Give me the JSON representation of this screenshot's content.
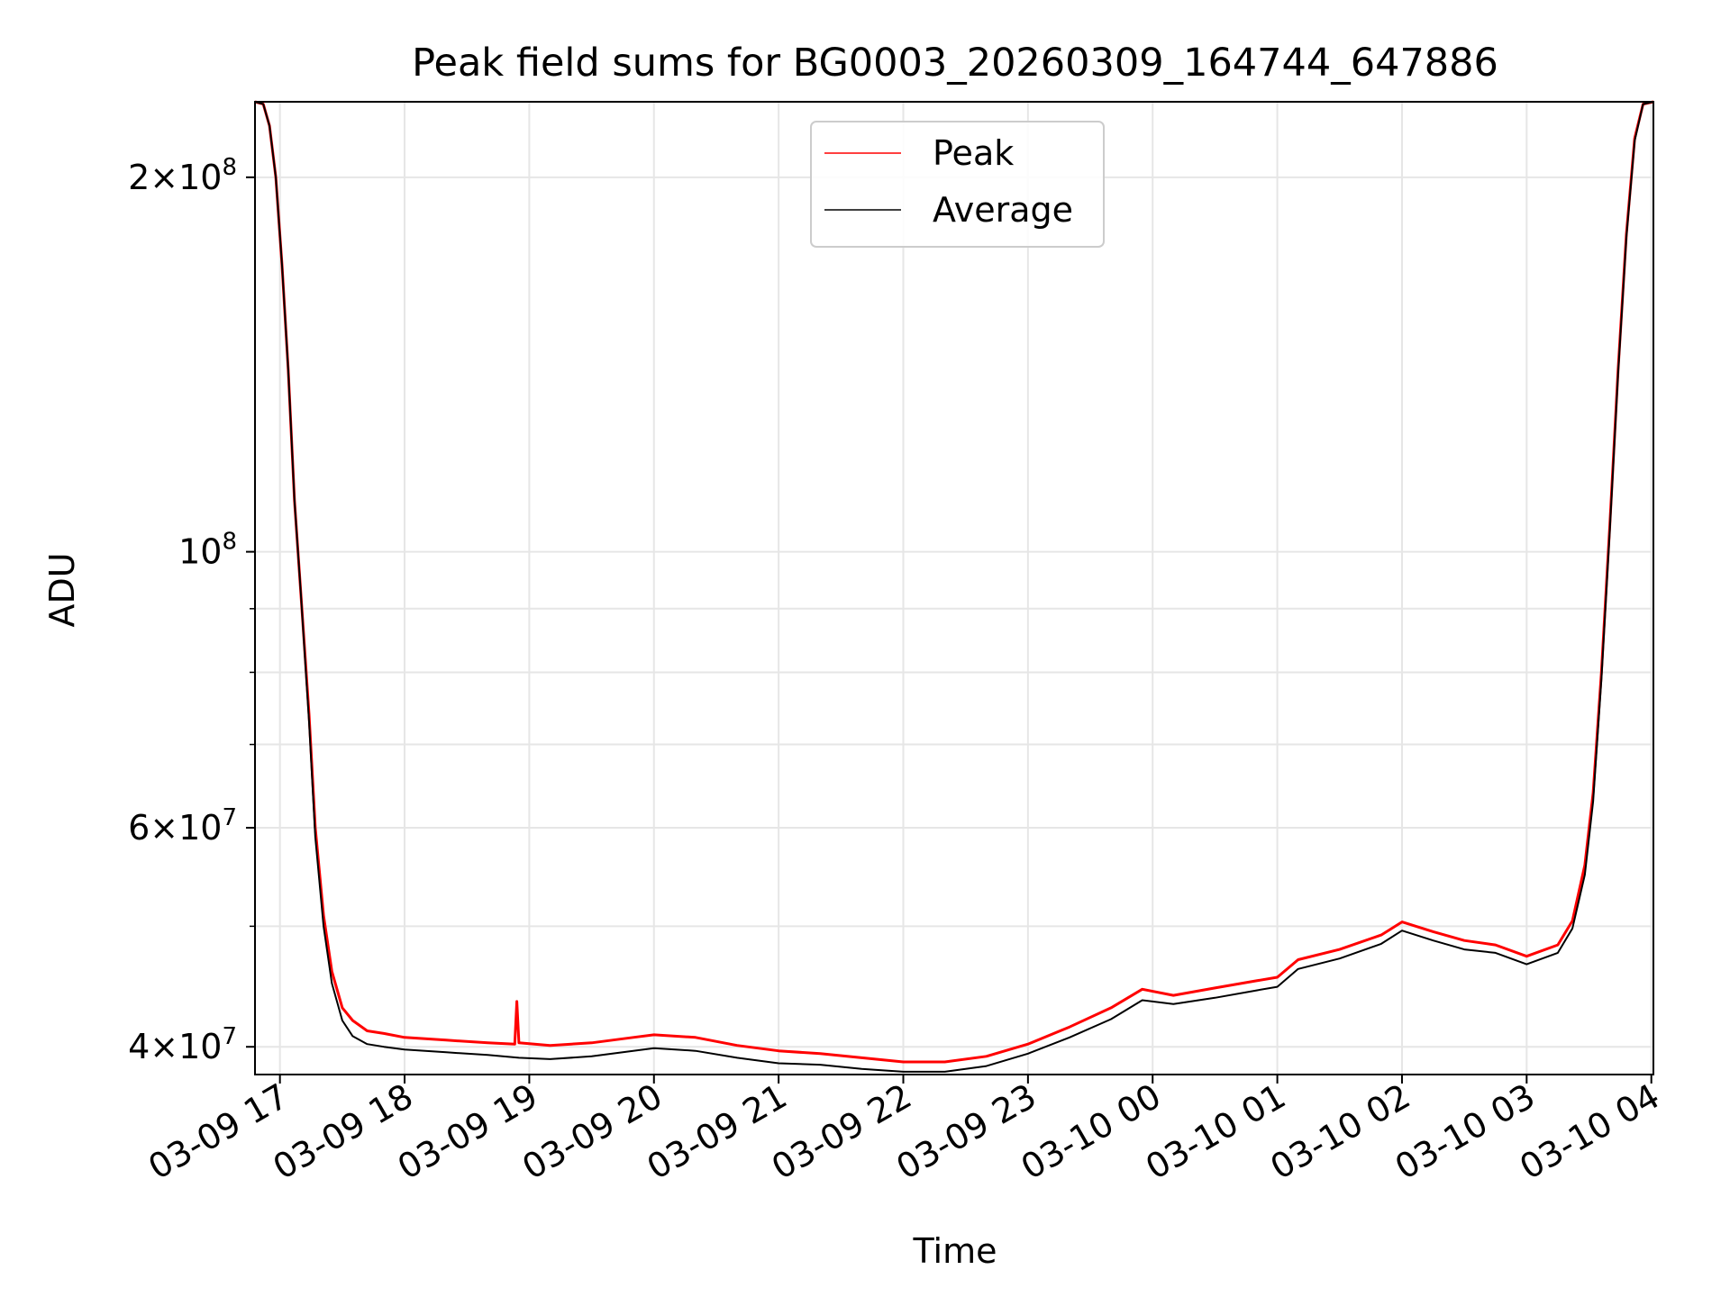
{
  "colors": {
    "peak": "#ff0000",
    "average": "#000000",
    "grid": "#e6e6e6",
    "axes": "#000000"
  },
  "chart_data": {
    "type": "line",
    "title": "Peak field sums for BG0003_20260309_164744_647886",
    "xlabel": "Time",
    "ylabel": "ADU",
    "yscale": "log",
    "grid": true,
    "legend": {
      "location": "top-center",
      "entries": [
        "Peak",
        "Average"
      ]
    },
    "xlim": [
      "2026-03-09 16:48",
      "2026-03-10 04:01"
    ],
    "ylim": [
      38000000,
      230000000
    ],
    "x_ticks": [
      {
        "value": "2026-03-09 17:00",
        "label": "03-09 17"
      },
      {
        "value": "2026-03-09 18:00",
        "label": "03-09 18"
      },
      {
        "value": "2026-03-09 19:00",
        "label": "03-09 19"
      },
      {
        "value": "2026-03-09 20:00",
        "label": "03-09 20"
      },
      {
        "value": "2026-03-09 21:00",
        "label": "03-09 21"
      },
      {
        "value": "2026-03-09 22:00",
        "label": "03-09 22"
      },
      {
        "value": "2026-03-09 23:00",
        "label": "03-09 23"
      },
      {
        "value": "2026-03-10 00:00",
        "label": "03-10 00"
      },
      {
        "value": "2026-03-10 01:00",
        "label": "03-10 01"
      },
      {
        "value": "2026-03-10 02:00",
        "label": "03-10 02"
      },
      {
        "value": "2026-03-10 03:00",
        "label": "03-10 03"
      },
      {
        "value": "2026-03-10 04:00",
        "label": "03-10 04"
      }
    ],
    "y_major_ticks": [
      {
        "value": 40000000,
        "mantissa": "4",
        "exponent": "7"
      },
      {
        "value": 60000000,
        "mantissa": "6",
        "exponent": "7"
      },
      {
        "value": 100000000,
        "mantissa": "",
        "exponent": "8"
      },
      {
        "value": 200000000,
        "mantissa": "2",
        "exponent": "8"
      }
    ],
    "y_minor_ticks": [
      50000000,
      70000000,
      80000000,
      90000000
    ],
    "series": [
      {
        "name": "Peak",
        "color": "#ff0000",
        "x": [
          "2026-03-09 16:48",
          "2026-03-09 16:52",
          "2026-03-09 16:55",
          "2026-03-09 16:58",
          "2026-03-09 17:01",
          "2026-03-09 17:04",
          "2026-03-09 17:07",
          "2026-03-09 17:10",
          "2026-03-09 17:14",
          "2026-03-09 17:17",
          "2026-03-09 17:21",
          "2026-03-09 17:25",
          "2026-03-09 17:30",
          "2026-03-09 17:35",
          "2026-03-09 17:42",
          "2026-03-09 17:50",
          "2026-03-09 18:00",
          "2026-03-09 18:20",
          "2026-03-09 18:40",
          "2026-03-09 18:53",
          "2026-03-09 18:54",
          "2026-03-09 18:55",
          "2026-03-09 19:10",
          "2026-03-09 19:30",
          "2026-03-09 19:50",
          "2026-03-09 20:00",
          "2026-03-09 20:20",
          "2026-03-09 20:40",
          "2026-03-09 21:00",
          "2026-03-09 21:20",
          "2026-03-09 21:40",
          "2026-03-09 22:00",
          "2026-03-09 22:20",
          "2026-03-09 22:40",
          "2026-03-09 23:00",
          "2026-03-09 23:20",
          "2026-03-09 23:40",
          "2026-03-09 23:55",
          "2026-03-10 00:10",
          "2026-03-10 00:30",
          "2026-03-10 00:50",
          "2026-03-10 01:00",
          "2026-03-10 01:10",
          "2026-03-10 01:30",
          "2026-03-10 01:50",
          "2026-03-10 02:00",
          "2026-03-10 02:15",
          "2026-03-10 02:30",
          "2026-03-10 02:45",
          "2026-03-10 03:00",
          "2026-03-10 03:15",
          "2026-03-10 03:22",
          "2026-03-10 03:28",
          "2026-03-10 03:32",
          "2026-03-10 03:36",
          "2026-03-10 03:40",
          "2026-03-10 03:44",
          "2026-03-10 03:48",
          "2026-03-10 03:52",
          "2026-03-10 03:56",
          "2026-03-10 04:01"
        ],
        "values": [
          230000000,
          229000000,
          220000000,
          200000000,
          170000000,
          140000000,
          110000000,
          93000000,
          74000000,
          60000000,
          51000000,
          46000000,
          43000000,
          42000000,
          41200000,
          41000000,
          40700000,
          40500000,
          40300000,
          40200000,
          43500000,
          40300000,
          40100000,
          40300000,
          40700000,
          40900000,
          40700000,
          40100000,
          39700000,
          39500000,
          39200000,
          38900000,
          38900000,
          39300000,
          40200000,
          41500000,
          43000000,
          44500000,
          44000000,
          44600000,
          45200000,
          45500000,
          47000000,
          47900000,
          49200000,
          50400000,
          49500000,
          48700000,
          48300000,
          47300000,
          48300000,
          50500000,
          56000000,
          64000000,
          80000000,
          105000000,
          140000000,
          180000000,
          215000000,
          229000000,
          230000000
        ]
      },
      {
        "name": "Average",
        "color": "#000000",
        "x": [
          "2026-03-09 16:48",
          "2026-03-09 16:52",
          "2026-03-09 16:55",
          "2026-03-09 16:58",
          "2026-03-09 17:01",
          "2026-03-09 17:04",
          "2026-03-09 17:07",
          "2026-03-09 17:10",
          "2026-03-09 17:14",
          "2026-03-09 17:17",
          "2026-03-09 17:21",
          "2026-03-09 17:25",
          "2026-03-09 17:30",
          "2026-03-09 17:35",
          "2026-03-09 17:42",
          "2026-03-09 17:50",
          "2026-03-09 18:00",
          "2026-03-09 18:20",
          "2026-03-09 18:40",
          "2026-03-09 18:55",
          "2026-03-09 19:10",
          "2026-03-09 19:30",
          "2026-03-09 19:50",
          "2026-03-09 20:00",
          "2026-03-09 20:20",
          "2026-03-09 20:40",
          "2026-03-09 21:00",
          "2026-03-09 21:20",
          "2026-03-09 21:40",
          "2026-03-09 22:00",
          "2026-03-09 22:20",
          "2026-03-09 22:40",
          "2026-03-09 23:00",
          "2026-03-09 23:20",
          "2026-03-09 23:40",
          "2026-03-09 23:55",
          "2026-03-10 00:10",
          "2026-03-10 00:30",
          "2026-03-10 00:50",
          "2026-03-10 01:00",
          "2026-03-10 01:10",
          "2026-03-10 01:30",
          "2026-03-10 01:50",
          "2026-03-10 02:00",
          "2026-03-10 02:15",
          "2026-03-10 02:30",
          "2026-03-10 02:45",
          "2026-03-10 03:00",
          "2026-03-10 03:15",
          "2026-03-10 03:22",
          "2026-03-10 03:28",
          "2026-03-10 03:32",
          "2026-03-10 03:36",
          "2026-03-10 03:40",
          "2026-03-10 03:44",
          "2026-03-10 03:48",
          "2026-03-10 03:52",
          "2026-03-10 03:56",
          "2026-03-10 04:01"
        ],
        "values": [
          230000000,
          229000000,
          220000000,
          200000000,
          170000000,
          140000000,
          110000000,
          93000000,
          73000000,
          59000000,
          50000000,
          45000000,
          42000000,
          40800000,
          40200000,
          40000000,
          39800000,
          39600000,
          39400000,
          39200000,
          39100000,
          39300000,
          39700000,
          39900000,
          39700000,
          39200000,
          38800000,
          38700000,
          38400000,
          38200000,
          38200000,
          38600000,
          39500000,
          40700000,
          42100000,
          43600000,
          43300000,
          43800000,
          44400000,
          44700000,
          46200000,
          47100000,
          48400000,
          49600000,
          48700000,
          47900000,
          47600000,
          46600000,
          47600000,
          49800000,
          55000000,
          63000000,
          79000000,
          104000000,
          139000000,
          179000000,
          214000000,
          229000000,
          230000000
        ]
      }
    ]
  }
}
